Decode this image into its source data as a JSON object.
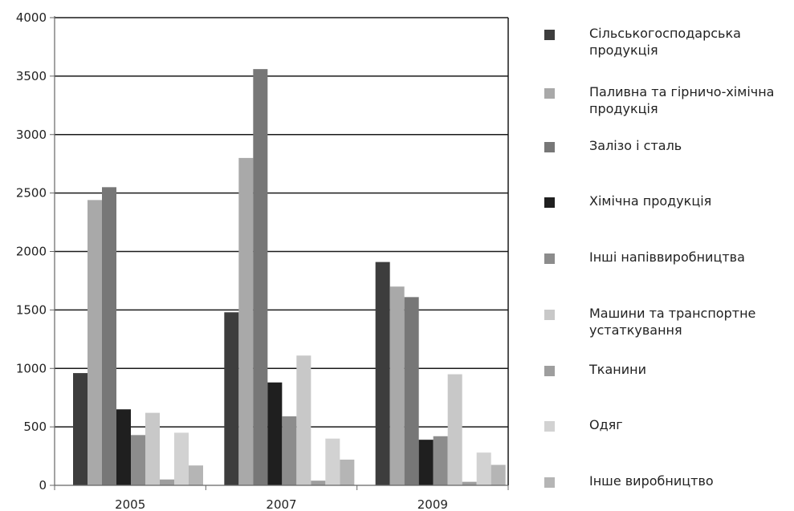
{
  "chart_data": {
    "type": "bar",
    "categories": [
      "2005",
      "2007",
      "2009"
    ],
    "y_ticks": [
      "0",
      "500",
      "1000",
      "1500",
      "2000",
      "2500",
      "3000",
      "3500",
      "4000"
    ],
    "ylim": [
      0,
      4000
    ],
    "grid": "horizontal",
    "legend_position": "right",
    "series": [
      {
        "name": "Сільськогосподарська продукція",
        "color": "#3d3d3d",
        "values": [
          960,
          1480,
          1910
        ]
      },
      {
        "name": "Паливна та гірничо-хімічна продукція",
        "color": "#a9a9a9",
        "values": [
          2440,
          2800,
          1700
        ]
      },
      {
        "name": "Залізо і сталь",
        "color": "#777777",
        "values": [
          2550,
          3560,
          1610
        ]
      },
      {
        "name": "Хімічна продукція",
        "color": "#1f1f1f",
        "values": [
          650,
          880,
          390
        ]
      },
      {
        "name": "Інші напіввиробництва",
        "color": "#8c8c8c",
        "values": [
          430,
          590,
          420
        ]
      },
      {
        "name": "Машини та транспортне устаткування",
        "color": "#c8c8c8",
        "values": [
          620,
          1110,
          950
        ]
      },
      {
        "name": "Тканини",
        "color": "#9e9e9e",
        "values": [
          50,
          40,
          30
        ]
      },
      {
        "name": "Одяг",
        "color": "#d2d2d2",
        "values": [
          450,
          400,
          280
        ]
      },
      {
        "name": "Інше виробництво",
        "color": "#b5b5b5",
        "values": [
          170,
          220,
          175
        ]
      }
    ]
  }
}
